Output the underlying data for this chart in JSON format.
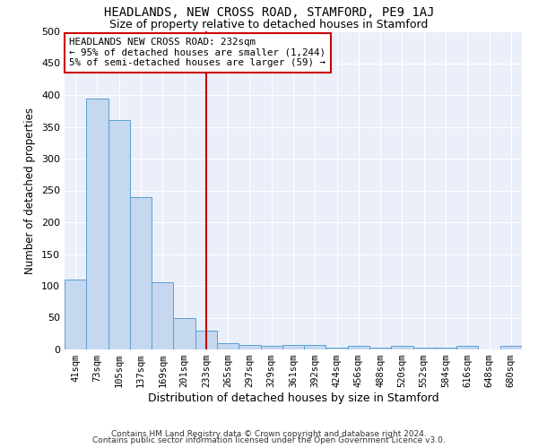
{
  "title": "HEADLANDS, NEW CROSS ROAD, STAMFORD, PE9 1AJ",
  "subtitle": "Size of property relative to detached houses in Stamford",
  "xlabel": "Distribution of detached houses by size in Stamford",
  "ylabel": "Number of detached properties",
  "bar_labels": [
    "41sqm",
    "73sqm",
    "105sqm",
    "137sqm",
    "169sqm",
    "201sqm",
    "233sqm",
    "265sqm",
    "297sqm",
    "329sqm",
    "361sqm",
    "392sqm",
    "424sqm",
    "456sqm",
    "488sqm",
    "520sqm",
    "552sqm",
    "584sqm",
    "616sqm",
    "648sqm",
    "680sqm"
  ],
  "bar_heights": [
    110,
    395,
    360,
    240,
    105,
    50,
    30,
    10,
    7,
    5,
    7,
    7,
    3,
    5,
    3,
    5,
    3,
    3,
    5,
    0,
    5
  ],
  "bar_color": "#c5d8f0",
  "bar_edge_color": "#5a9fd4",
  "annotation_text": "HEADLANDS NEW CROSS ROAD: 232sqm\n← 95% of detached houses are smaller (1,244)\n5% of semi-detached houses are larger (59) →",
  "vline_x_index": 6,
  "vline_color": "#cc0000",
  "annotation_box_color": "#cc0000",
  "ylim": [
    0,
    500
  ],
  "yticks": [
    0,
    50,
    100,
    150,
    200,
    250,
    300,
    350,
    400,
    450,
    500
  ],
  "background_color": "#eaeff9",
  "footer_line1": "Contains HM Land Registry data © Crown copyright and database right 2024.",
  "footer_line2": "Contains public sector information licensed under the Open Government Licence v3.0.",
  "title_fontsize": 10,
  "subtitle_fontsize": 9
}
